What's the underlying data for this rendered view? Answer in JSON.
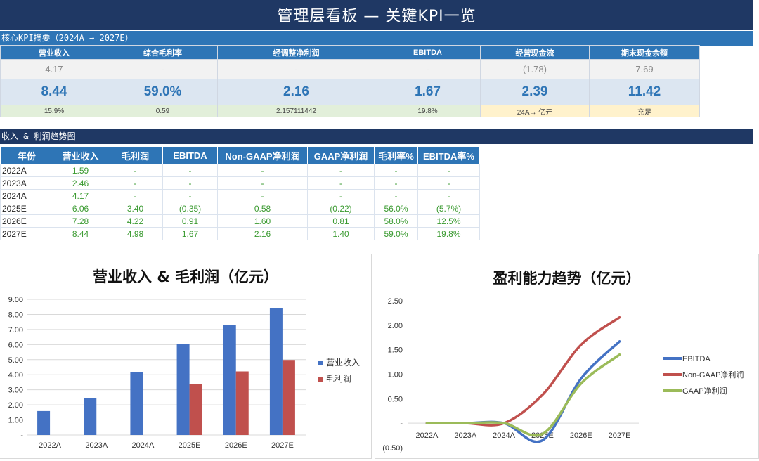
{
  "title": "管理层看板 — 关键KPI一览",
  "kpi_section": {
    "label": "核心KPI摘要（2024A → 2027E）",
    "headers": [
      "营业收入",
      "综合毛利率",
      "经调整净利润",
      "EBITDA",
      "经营现金流",
      "期末现金余额"
    ],
    "previous": [
      "4.17",
      "-",
      "-",
      "-",
      "(1.78)",
      "7.69"
    ],
    "current": [
      "8.44",
      "59.0%",
      "2.16",
      "1.67",
      "2.39",
      "11.42"
    ],
    "notes": [
      "15.9%",
      "0.59",
      "2.157111442",
      "19.8%",
      "24A→ 亿元",
      "充足"
    ]
  },
  "trend_section": {
    "label": "收入 & 利润趋势图",
    "headers": [
      "年份",
      "营业收入",
      "毛利润",
      "EBITDA",
      "Non-GAAP净利润",
      "GAAP净利润",
      "毛利率%",
      "EBITDA率%"
    ],
    "rows": [
      [
        "2022A",
        "1.59",
        "-",
        "-",
        "-",
        "-",
        "-",
        "-"
      ],
      [
        "2023A",
        "2.46",
        "-",
        "-",
        "-",
        "-",
        "-",
        "-"
      ],
      [
        "2024A",
        "4.17",
        "-",
        "-",
        "-",
        "-",
        "-",
        "-"
      ],
      [
        "2025E",
        "6.06",
        "3.40",
        "(0.35)",
        "0.58",
        "(0.22)",
        "56.0%",
        "(5.7%)"
      ],
      [
        "2026E",
        "7.28",
        "4.22",
        "0.91",
        "1.60",
        "0.81",
        "58.0%",
        "12.5%"
      ],
      [
        "2027E",
        "8.44",
        "4.98",
        "1.67",
        "2.16",
        "1.40",
        "59.0%",
        "19.8%"
      ]
    ]
  },
  "colors": {
    "header_navy": "#1f3864",
    "accent_blue": "#2e75b6",
    "revenue": "#4472c4",
    "gross": "#c0504d",
    "green": "#9bbb59"
  },
  "chart_data": [
    {
      "type": "bar",
      "title": "营业收入 & 毛利润（亿元）",
      "categories": [
        "2022A",
        "2023A",
        "2024A",
        "2025E",
        "2026E",
        "2027E"
      ],
      "series": [
        {
          "name": "营业收入",
          "values": [
            1.59,
            2.46,
            4.17,
            6.06,
            7.28,
            8.44
          ]
        },
        {
          "name": "毛利润",
          "values": [
            0,
            0,
            0,
            3.4,
            4.22,
            4.98
          ]
        }
      ],
      "ylim": [
        0,
        9
      ],
      "yticks": [
        "-",
        "1.00",
        "2.00",
        "3.00",
        "4.00",
        "5.00",
        "6.00",
        "7.00",
        "8.00",
        "9.00"
      ],
      "legend": "right",
      "grid": true
    },
    {
      "type": "line",
      "title": "盈利能力趋势（亿元）",
      "categories": [
        "2022A",
        "2023A",
        "2024A",
        "2025E",
        "2026E",
        "2027E"
      ],
      "series": [
        {
          "name": "EBITDA",
          "values": [
            0,
            0,
            0,
            -0.35,
            0.91,
            1.67
          ]
        },
        {
          "name": "Non-GAAP净利润",
          "values": [
            0,
            0,
            0,
            0.58,
            1.6,
            2.16
          ]
        },
        {
          "name": "GAAP净利润",
          "values": [
            0,
            0,
            0,
            -0.22,
            0.81,
            1.4
          ]
        }
      ],
      "ylim": [
        -0.5,
        2.5
      ],
      "yticks": [
        "(0.50)",
        "-",
        "0.50",
        "1.00",
        "1.50",
        "2.00",
        "2.50"
      ],
      "legend": "right",
      "grid": false
    }
  ]
}
